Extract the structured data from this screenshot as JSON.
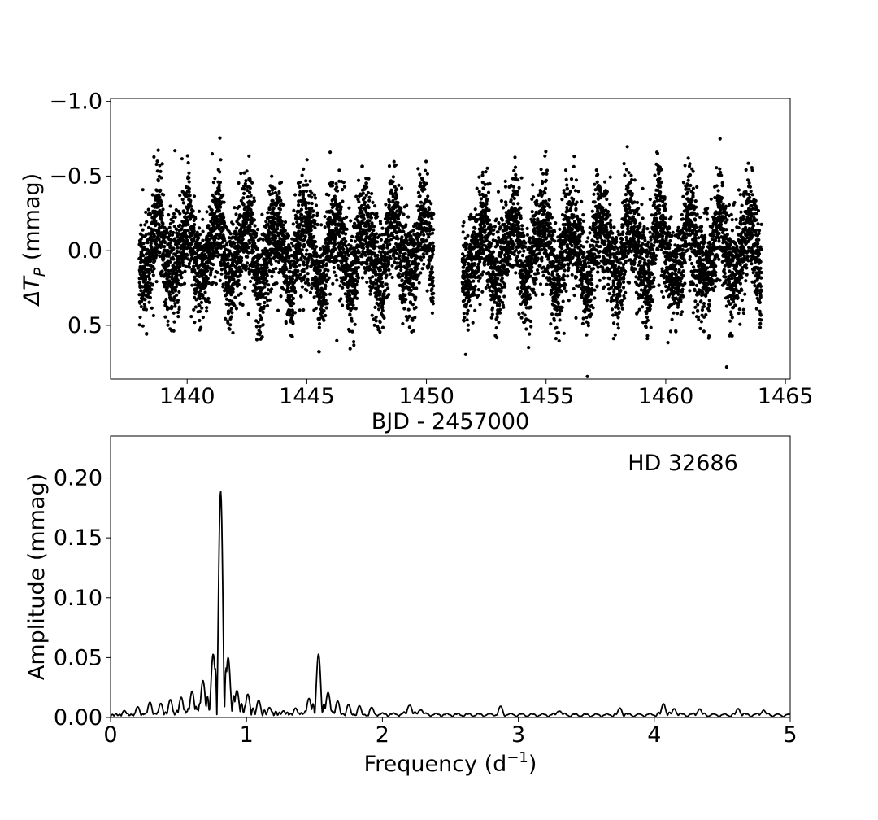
{
  "chart_data": [
    {
      "type": "scatter",
      "title": "",
      "xlabel": "BJD - 2457000",
      "ylabel_main": "ΔT",
      "ylabel_sub": "P",
      "ylabel_unit": "(mmag)",
      "xlim": [
        1436.8,
        1465.2
      ],
      "ylim": [
        0.86,
        -1.02
      ],
      "y_inverted": true,
      "xticks": [
        1440,
        1445,
        1450,
        1455,
        1460,
        1465
      ],
      "xtick_labels": [
        "1440",
        "1445",
        "1450",
        "1455",
        "1460",
        "1465"
      ],
      "yticks": [
        -1.0,
        -0.5,
        0.0,
        0.5
      ],
      "ytick_labels": [
        "−1.0",
        "−0.5",
        "0.0",
        "0.5"
      ],
      "marker_color": "#000000",
      "segments": [
        {
          "x_start": 1438.0,
          "x_end": 1450.3
        },
        {
          "x_start": 1451.5,
          "x_end": 1464.0
        }
      ],
      "signal": {
        "frequency_cpd": 0.81,
        "amplitude_mmag": 0.19,
        "harmonic_frequency_cpd": 1.53,
        "harmonic_amplitude_mmag": 0.05,
        "scatter_sigma_mmag": 0.17
      },
      "n_points_approx": 8600
    },
    {
      "type": "line",
      "title": "",
      "annotation": "HD 32686",
      "xlabel_main": "Frequency (d",
      "xlabel_sup": "−1",
      "xlabel_close": ")",
      "ylabel": "Amplitude (mmag)",
      "xlim": [
        0,
        5
      ],
      "ylim": [
        0,
        0.235
      ],
      "xticks": [
        0,
        1,
        2,
        3,
        4,
        5
      ],
      "xtick_labels": [
        "0",
        "1",
        "2",
        "3",
        "4",
        "5"
      ],
      "yticks": [
        0.0,
        0.05,
        0.1,
        0.15,
        0.2
      ],
      "ytick_labels": [
        "0.00",
        "0.05",
        "0.10",
        "0.15",
        "0.20"
      ],
      "line_color": "#000000",
      "peaks": [
        {
          "freq": 0.1,
          "amp": 0.005
        },
        {
          "freq": 0.2,
          "amp": 0.008
        },
        {
          "freq": 0.29,
          "amp": 0.012
        },
        {
          "freq": 0.37,
          "amp": 0.011
        },
        {
          "freq": 0.44,
          "amp": 0.014
        },
        {
          "freq": 0.52,
          "amp": 0.016
        },
        {
          "freq": 0.6,
          "amp": 0.021
        },
        {
          "freq": 0.68,
          "amp": 0.03
        },
        {
          "freq": 0.755,
          "amp": 0.052
        },
        {
          "freq": 0.81,
          "amp": 0.188
        },
        {
          "freq": 0.865,
          "amp": 0.05
        },
        {
          "freq": 0.93,
          "amp": 0.022
        },
        {
          "freq": 1.01,
          "amp": 0.019
        },
        {
          "freq": 1.09,
          "amp": 0.014
        },
        {
          "freq": 1.17,
          "amp": 0.008
        },
        {
          "freq": 1.27,
          "amp": 0.005
        },
        {
          "freq": 1.36,
          "amp": 0.007
        },
        {
          "freq": 1.46,
          "amp": 0.015
        },
        {
          "freq": 1.53,
          "amp": 0.052
        },
        {
          "freq": 1.6,
          "amp": 0.02
        },
        {
          "freq": 1.67,
          "amp": 0.013
        },
        {
          "freq": 1.75,
          "amp": 0.01
        },
        {
          "freq": 1.83,
          "amp": 0.009
        },
        {
          "freq": 1.92,
          "amp": 0.006
        },
        {
          "freq": 2.2,
          "amp": 0.01
        },
        {
          "freq": 2.28,
          "amp": 0.006
        },
        {
          "freq": 2.87,
          "amp": 0.007
        },
        {
          "freq": 3.3,
          "amp": 0.005
        },
        {
          "freq": 3.75,
          "amp": 0.006
        },
        {
          "freq": 4.07,
          "amp": 0.01
        },
        {
          "freq": 4.15,
          "amp": 0.006
        },
        {
          "freq": 4.33,
          "amp": 0.006
        },
        {
          "freq": 4.62,
          "amp": 0.006
        },
        {
          "freq": 4.8,
          "amp": 0.005
        }
      ]
    }
  ]
}
